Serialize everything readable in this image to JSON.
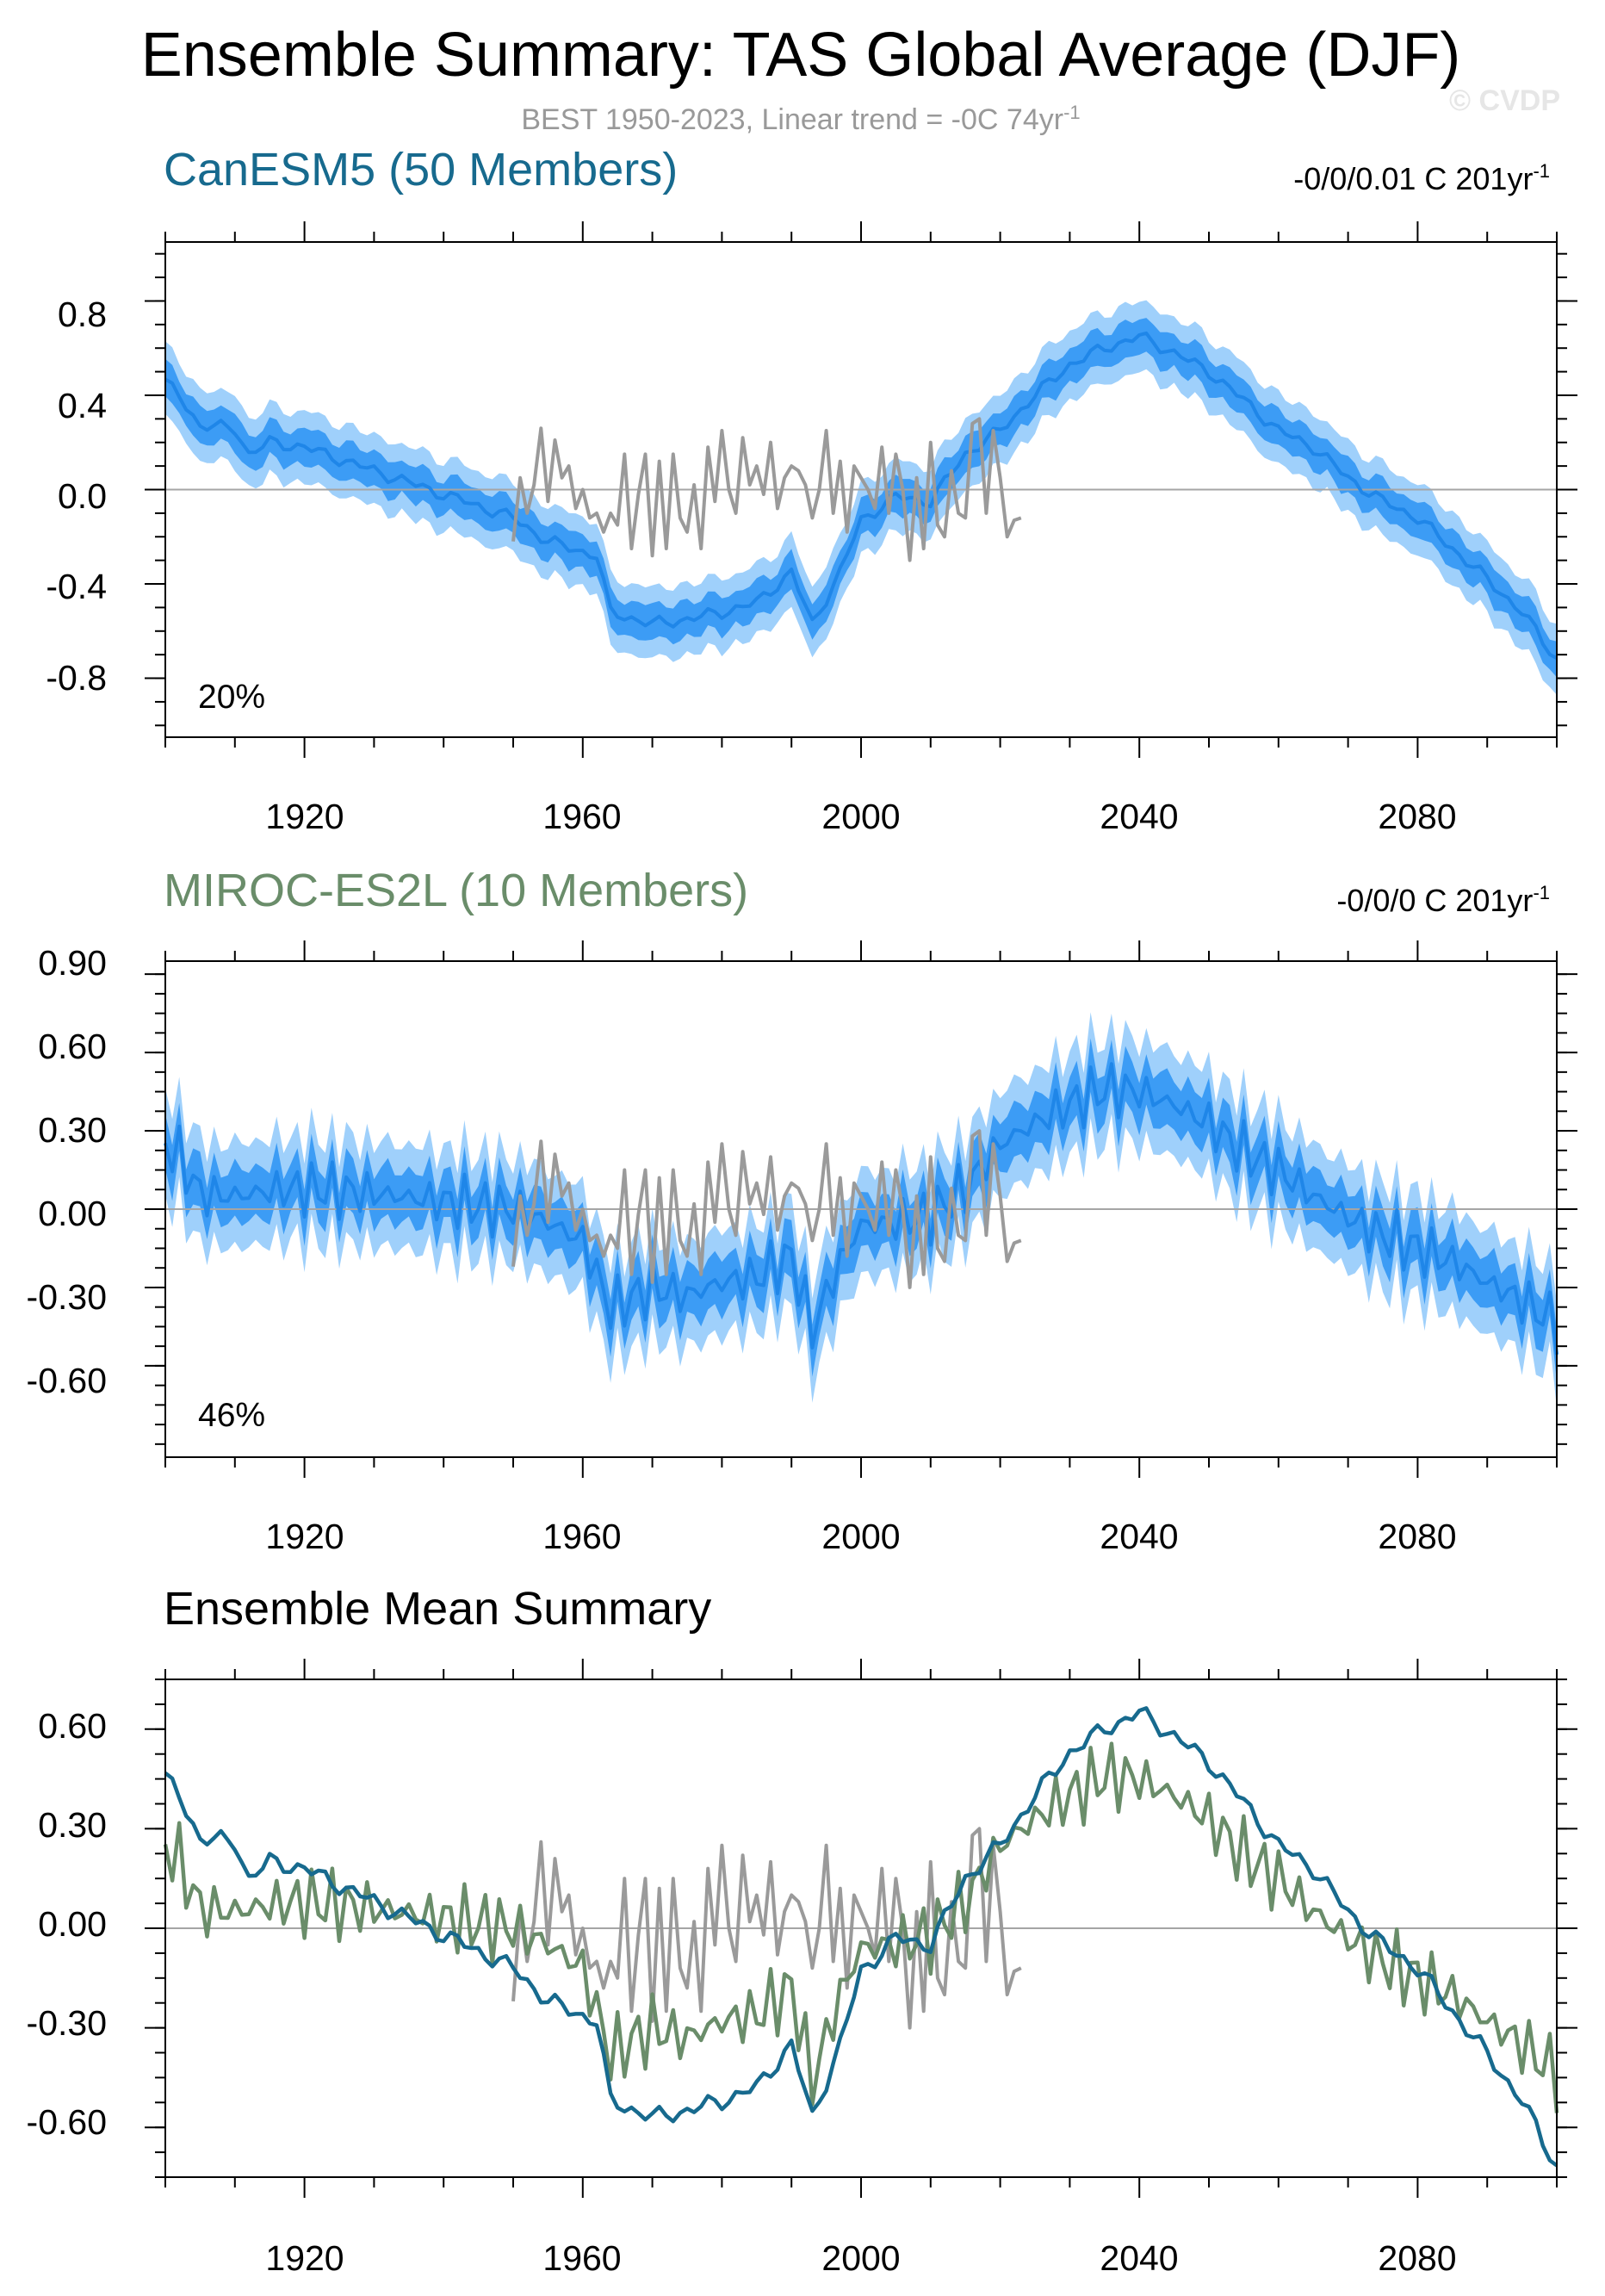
{
  "figure": {
    "title": "Ensemble Summary: TAS Global Average (DJF)",
    "subtitle": "BEST 1950-2023, Linear trend = -0C 74yr",
    "subtitle_sup": "-1",
    "copyright": "© CVDP"
  },
  "colors": {
    "canesm5": "#176a8e",
    "miroc": "#6a8d6a",
    "obs": "#9a9a9a",
    "band_outer": "#9fd0fb",
    "band_inner": "#3c9cf5",
    "ens_line": "#1f86e8",
    "zero_line": "#a5a5a5"
  },
  "panels": [
    {
      "id": "canesm5",
      "title": "CanESM5 (50 Members)",
      "trend_text": "-0/0/0.01 C 201yr",
      "trend_sup": "-1",
      "pct_label": "20%",
      "y_ticks": [
        "0.8",
        "0.4",
        "0.0",
        "-0.4",
        "-0.8"
      ],
      "x_ticks": [
        "1920",
        "1960",
        "2000",
        "2040",
        "2080"
      ]
    },
    {
      "id": "miroc",
      "title": "MIROC-ES2L (10 Members)",
      "trend_text": "-0/0/0 C 201yr",
      "trend_sup": "-1",
      "pct_label": "46%",
      "y_ticks": [
        "0.90",
        "0.60",
        "0.30",
        "0.00",
        "-0.30",
        "-0.60"
      ],
      "x_ticks": [
        "1920",
        "1960",
        "2000",
        "2040",
        "2080"
      ]
    },
    {
      "id": "summary",
      "title": "Ensemble Mean Summary",
      "y_ticks": [
        "0.60",
        "0.30",
        "0.00",
        "-0.30",
        "-0.60"
      ],
      "x_ticks": [
        "1920",
        "1960",
        "2000",
        "2040",
        "2080"
      ]
    }
  ],
  "chart_data": [
    {
      "type": "line",
      "title": "CanESM5 (50 Members)",
      "xlabel": "",
      "ylabel": "",
      "xlim": [
        1900,
        2100
      ],
      "ylim": [
        -1.05,
        1.05
      ],
      "grid": false,
      "spread_bands": [
        "10-90 percentile (light)",
        "25-75 percentile (dark)"
      ],
      "ensemble_mean_keypoints": {
        "x": [
          1900,
          1902,
          1905,
          1910,
          1912,
          1915,
          1920,
          1930,
          1940,
          1950,
          1955,
          1962,
          1964,
          1970,
          1975,
          1980,
          1985,
          1990,
          1993,
          1997,
          2000,
          2005,
          2010,
          2015,
          2020,
          2025,
          2030,
          2035,
          2040,
          2045,
          2050,
          2055,
          2060,
          2065,
          2070,
          2075,
          2080,
          2085,
          2090,
          2095,
          2100
        ],
        "y": [
          0.45,
          0.4,
          0.27,
          0.26,
          0.15,
          0.2,
          0.18,
          0.08,
          -0.02,
          -0.12,
          -0.22,
          -0.28,
          -0.52,
          -0.57,
          -0.55,
          -0.52,
          -0.48,
          -0.35,
          -0.57,
          -0.35,
          -0.13,
          -0.03,
          -0.05,
          0.15,
          0.25,
          0.4,
          0.53,
          0.6,
          0.65,
          0.58,
          0.5,
          0.38,
          0.25,
          0.18,
          0.05,
          -0.05,
          -0.12,
          -0.25,
          -0.38,
          -0.52,
          -0.72
        ]
      },
      "observations": {
        "name": "BEST 1950-2023",
        "x": [
          1950,
          1951,
          1952,
          1953,
          1954,
          1955,
          1956,
          1957,
          1958,
          1959,
          1960,
          1961,
          1962,
          1963,
          1964,
          1965,
          1966,
          1967,
          1968,
          1969,
          1970,
          1971,
          1972,
          1973,
          1974,
          1975,
          1976,
          1977,
          1978,
          1979,
          1980,
          1981,
          1982,
          1983,
          1984,
          1985,
          1986,
          1987,
          1988,
          1989,
          1990,
          1991,
          1992,
          1993,
          1994,
          1995,
          1996,
          1997,
          1998,
          1999,
          2000,
          2001,
          2002,
          2003,
          2004,
          2005,
          2006,
          2007,
          2008,
          2009,
          2010,
          2011,
          2012,
          2013,
          2014,
          2015,
          2016,
          2017,
          2018,
          2019,
          2020,
          2021,
          2022,
          2023
        ],
        "y": [
          -0.22,
          0.05,
          -0.1,
          0.02,
          0.26,
          -0.05,
          0.21,
          0.05,
          0.1,
          -0.08,
          0.0,
          -0.12,
          -0.1,
          -0.18,
          -0.1,
          -0.15,
          0.15,
          -0.25,
          -0.02,
          0.15,
          -0.28,
          0.12,
          -0.25,
          0.15,
          -0.12,
          -0.18,
          0.02,
          -0.25,
          0.18,
          -0.05,
          0.25,
          0.0,
          -0.1,
          0.22,
          0.02,
          0.1,
          -0.02,
          0.2,
          -0.08,
          0.05,
          0.1,
          0.08,
          0.02,
          -0.12,
          0.0,
          0.25,
          -0.1,
          0.12,
          -0.18,
          0.1,
          0.05,
          0.0,
          -0.08,
          0.18,
          -0.1,
          0.15,
          0.0,
          -0.3,
          0.05,
          -0.25,
          0.2,
          -0.15,
          -0.2,
          0.08,
          -0.1,
          -0.12,
          0.28,
          0.3,
          -0.1,
          0.25,
          0.05,
          -0.2,
          -0.13,
          -0.12
        ]
      }
    },
    {
      "type": "line",
      "title": "MIROC-ES2L (10 Members)",
      "xlabel": "",
      "ylabel": "",
      "xlim": [
        1900,
        2100
      ],
      "ylim": [
        -0.95,
        0.95
      ],
      "grid": false,
      "spread_bands": [
        "10-90 percentile (light)",
        "25-75 percentile (dark)"
      ],
      "ensemble_mean_keypoints": {
        "x": [
          1900,
          1902,
          1905,
          1910,
          1915,
          1920,
          1930,
          1940,
          1950,
          1955,
          1960,
          1964,
          1970,
          1975,
          1980,
          1985,
          1990,
          1993,
          1997,
          2000,
          2005,
          2010,
          2015,
          2020,
          2025,
          2030,
          2035,
          2040,
          2045,
          2050,
          2055,
          2060,
          2065,
          2070,
          2075,
          2080,
          2085,
          2090,
          2095,
          2100
        ],
        "y": [
          0.25,
          0.2,
          0.06,
          0.05,
          0.07,
          0.08,
          0.06,
          0.03,
          0.0,
          -0.05,
          -0.12,
          -0.38,
          -0.3,
          -0.33,
          -0.28,
          -0.26,
          -0.18,
          -0.46,
          -0.2,
          -0.06,
          -0.05,
          -0.02,
          0.08,
          0.25,
          0.33,
          0.4,
          0.46,
          0.45,
          0.4,
          0.33,
          0.22,
          0.15,
          0.05,
          -0.03,
          -0.1,
          -0.15,
          -0.2,
          -0.28,
          -0.35,
          -0.44
        ]
      },
      "observations": {
        "name": "BEST 1950-2023",
        "same_as": "CanESM5 panel"
      }
    },
    {
      "type": "line",
      "title": "Ensemble Mean Summary",
      "xlabel": "",
      "ylabel": "",
      "xlim": [
        1900,
        2100
      ],
      "ylim": [
        -0.75,
        0.75
      ],
      "grid": false,
      "series": [
        {
          "name": "CanESM5 (50 Members)",
          "color": "#176a8e",
          "source": "CanESM5 ensemble mean"
        },
        {
          "name": "MIROC-ES2L (10 Members)",
          "color": "#6a8d6a",
          "source": "MIROC-ES2L ensemble mean"
        },
        {
          "name": "BEST 1950-2023",
          "color": "#9a9a9a",
          "source": "observations"
        }
      ]
    }
  ]
}
